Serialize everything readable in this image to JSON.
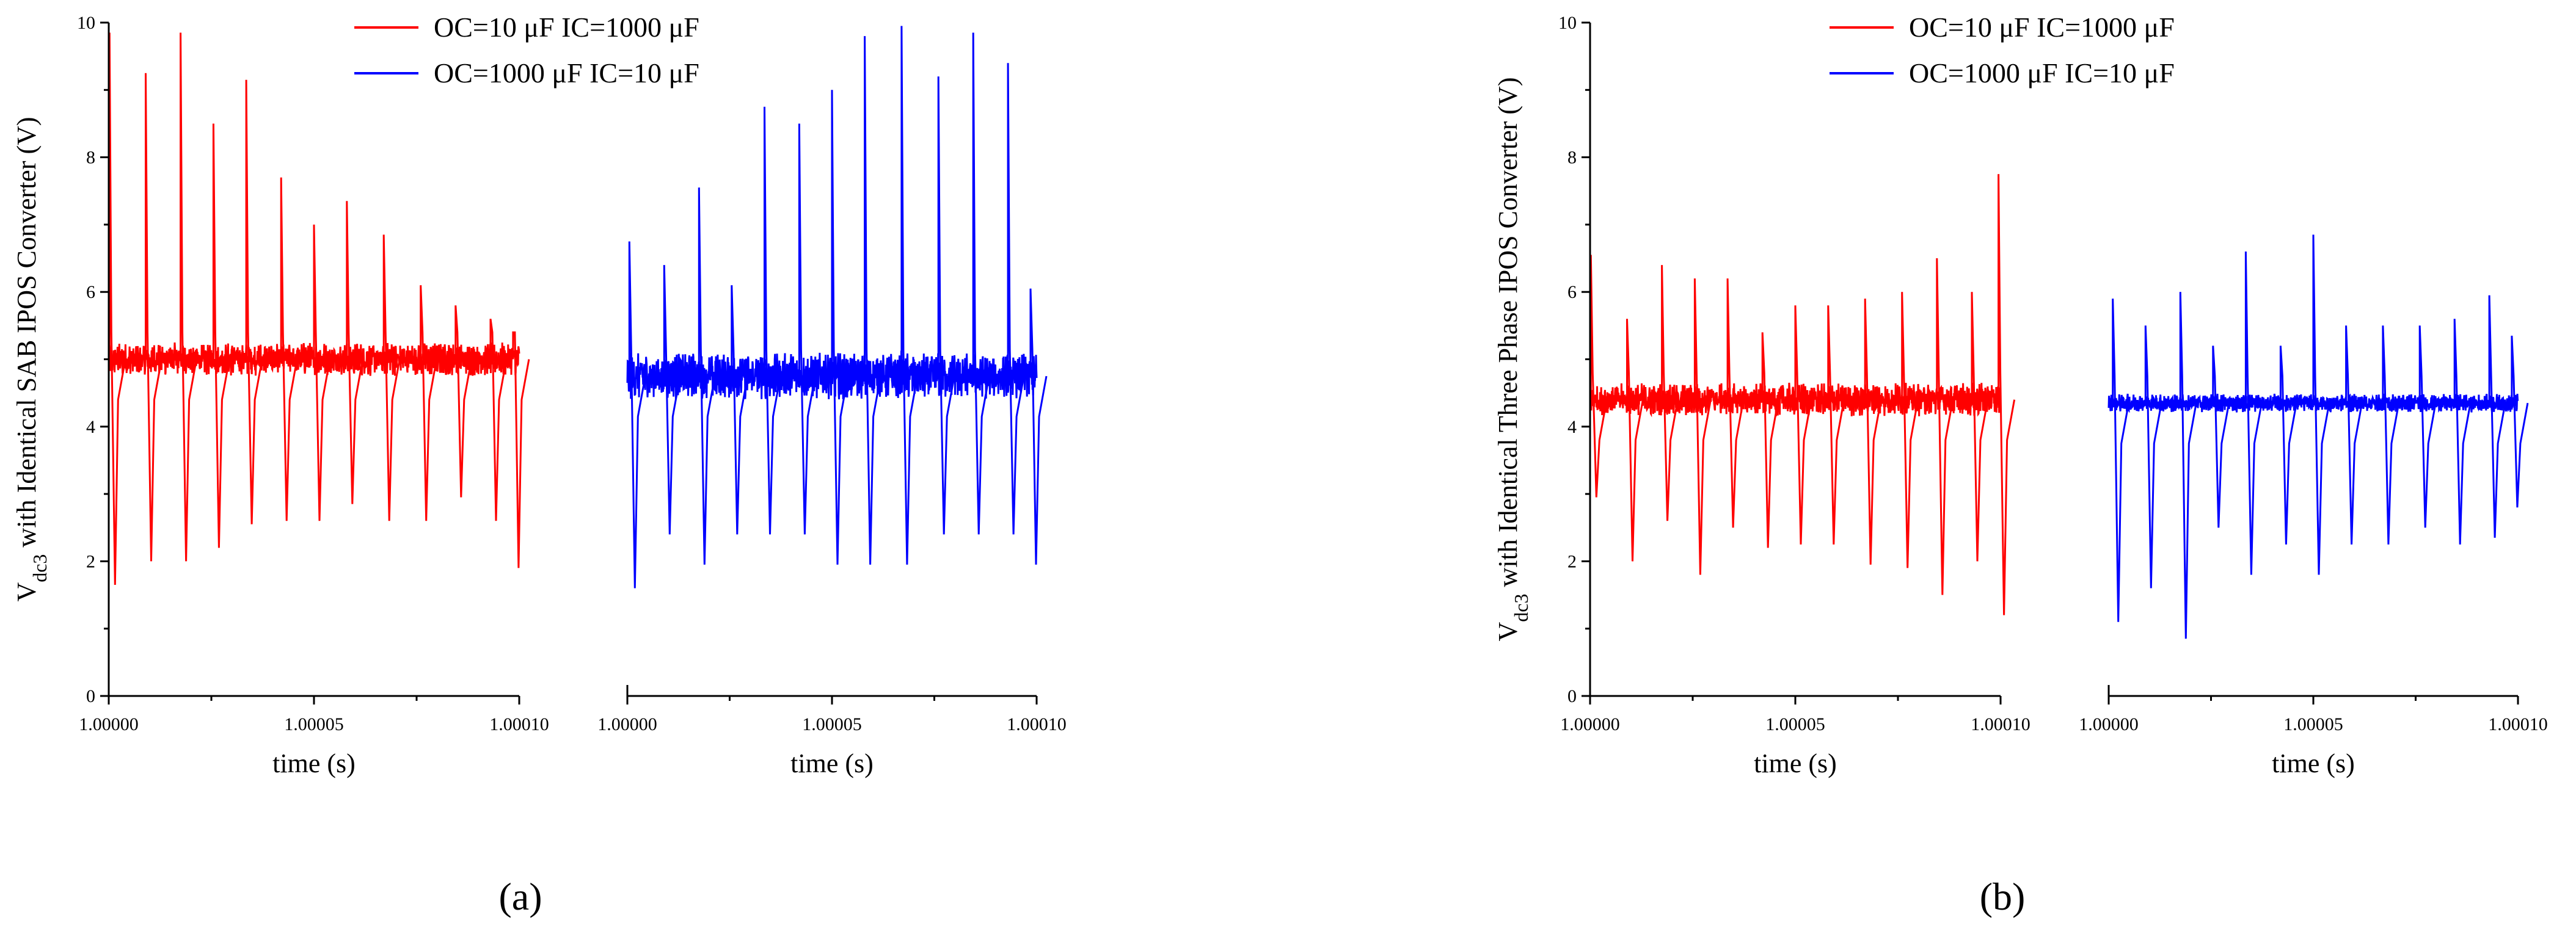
{
  "colors": {
    "red": "#ff0000",
    "blue": "#0000ff",
    "axis": "#000000"
  },
  "chart_data": [
    {
      "type": "line",
      "panel_label": "a",
      "caption": "(a)",
      "ylabel": "V",
      "ylabel_sub": "dc3",
      "ylabel_rest": " with Identical SAB IPOS Converter (V)",
      "ylim": [
        0,
        10
      ],
      "yticks": [
        "0",
        "2",
        "4",
        "6",
        "8",
        "10"
      ],
      "subplots": [
        {
          "xlabel": "time (s)",
          "xlim": [
            1.0,
            1.0001
          ],
          "xticks": [
            "1.00000",
            "1.00005",
            "1.00010"
          ],
          "series_name": "OC=10 μF   IC=1000 μF",
          "color": "#ff0000",
          "baseline": 5.0,
          "noise": 0.18,
          "spike_times_norm": [
            0.0,
            0.09,
            0.175,
            0.255,
            0.335,
            0.42,
            0.5,
            0.58,
            0.67,
            0.76,
            0.845,
            0.93,
            0.985
          ],
          "spike_highs": [
            9.85,
            9.25,
            9.85,
            8.5,
            9.15,
            7.7,
            7.0,
            7.35,
            6.85,
            6.1,
            5.8,
            5.6,
            5.4
          ],
          "spike_lows": [
            1.65,
            2.0,
            2.0,
            2.2,
            2.55,
            2.6,
            2.6,
            2.85,
            2.6,
            2.6,
            2.95,
            2.6,
            1.9
          ]
        },
        {
          "xlabel": "time (s)",
          "xlim": [
            1.0,
            1.0001
          ],
          "xticks": [
            "1.00000",
            "1.00005",
            "1.00010"
          ],
          "series_name": "OC=1000 μF   IC=10 μF",
          "color": "#0000ff",
          "baseline": 4.75,
          "noise": 0.25,
          "spike_times_norm": [
            0.005,
            0.09,
            0.175,
            0.255,
            0.335,
            0.42,
            0.5,
            0.58,
            0.67,
            0.76,
            0.845,
            0.93,
            0.985
          ],
          "spike_highs": [
            6.75,
            6.4,
            7.55,
            6.1,
            8.75,
            8.5,
            9.0,
            9.8,
            9.95,
            9.2,
            9.85,
            9.4,
            6.05
          ],
          "spike_lows": [
            1.6,
            2.4,
            1.95,
            2.4,
            2.4,
            2.4,
            1.95,
            1.95,
            1.95,
            2.4,
            2.4,
            2.4,
            1.95
          ]
        }
      ]
    },
    {
      "type": "line",
      "panel_label": "b",
      "caption": "(b)",
      "ylabel": "V",
      "ylabel_sub": "dc3",
      "ylabel_rest": " with Identical Three Phase IPOS Converter (V)",
      "ylim": [
        0,
        10
      ],
      "yticks": [
        "0",
        "2",
        "4",
        "6",
        "8",
        "10"
      ],
      "subplots": [
        {
          "xlabel": "time (s)",
          "xlim": [
            1.0,
            1.0001
          ],
          "xticks": [
            "1.00000",
            "1.00005",
            "1.00010"
          ],
          "series_name": "OC=10 μF   IC=1000 μF",
          "color": "#ff0000",
          "baseline": 4.4,
          "noise": 0.18,
          "spike_times_norm": [
            0.0,
            0.09,
            0.175,
            0.255,
            0.335,
            0.42,
            0.5,
            0.58,
            0.67,
            0.76,
            0.845,
            0.93,
            0.995
          ],
          "spike_highs": [
            6.55,
            5.6,
            6.4,
            6.2,
            6.2,
            5.4,
            5.8,
            5.8,
            5.9,
            6.0,
            6.5,
            6.0,
            7.75
          ],
          "spike_lows": [
            2.95,
            2.0,
            2.6,
            1.8,
            2.5,
            2.2,
            2.25,
            2.25,
            1.95,
            1.9,
            1.5,
            2.0,
            1.2
          ]
        },
        {
          "xlabel": "time (s)",
          "xlim": [
            1.0,
            1.0001
          ],
          "xticks": [
            "1.00000",
            "1.00005",
            "1.00010"
          ],
          "series_name": "OC=1000 μF   IC=10 μF",
          "color": "#0000ff",
          "baseline": 4.35,
          "noise": 0.1,
          "spike_times_norm": [
            0.01,
            0.09,
            0.175,
            0.255,
            0.335,
            0.42,
            0.5,
            0.58,
            0.67,
            0.76,
            0.845,
            0.93,
            0.985
          ],
          "spike_highs": [
            5.9,
            5.5,
            6.0,
            5.2,
            6.6,
            5.2,
            6.85,
            5.5,
            5.5,
            5.5,
            5.6,
            5.95,
            5.35
          ],
          "spike_lows": [
            1.1,
            1.6,
            0.85,
            2.5,
            1.8,
            2.25,
            1.8,
            2.25,
            2.25,
            2.5,
            2.25,
            2.35,
            2.8
          ]
        }
      ]
    }
  ]
}
